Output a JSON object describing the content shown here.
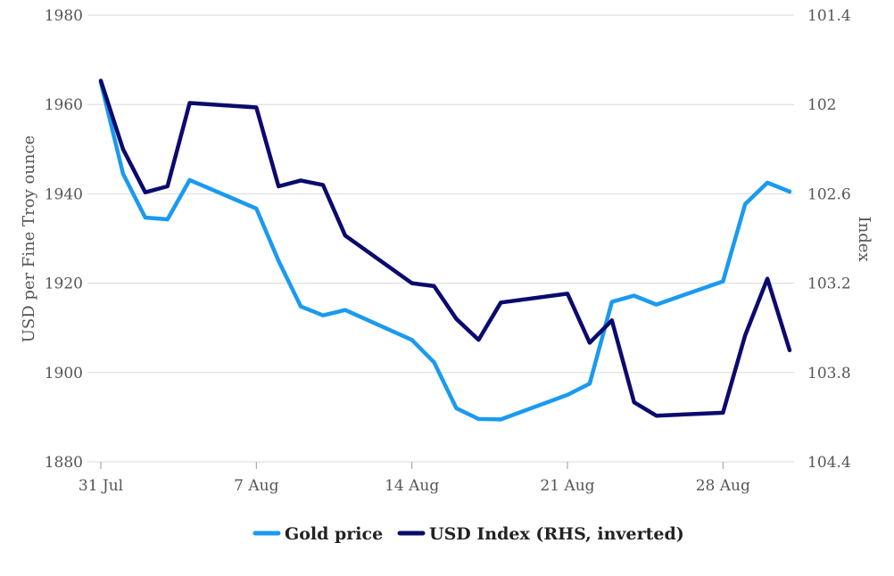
{
  "chart_data": {
    "type": "line",
    "title": "",
    "x_tick_labels": [
      "31 Jul",
      "7 Aug",
      "14 Aug",
      "21 Aug",
      "28 Aug"
    ],
    "x": [
      "2023-07-31",
      "2023-08-01",
      "2023-08-02",
      "2023-08-03",
      "2023-08-04",
      "2023-08-07",
      "2023-08-08",
      "2023-08-09",
      "2023-08-10",
      "2023-08-11",
      "2023-08-14",
      "2023-08-15",
      "2023-08-16",
      "2023-08-17",
      "2023-08-18",
      "2023-08-21",
      "2023-08-22",
      "2023-08-23",
      "2023-08-24",
      "2023-08-25",
      "2023-08-28",
      "2023-08-29",
      "2023-08-30",
      "2023-08-31"
    ],
    "xlim": [
      "2023-07-31",
      "2023-08-31"
    ],
    "left_axis": {
      "label": "USD per Fine Troy ounce",
      "ylim": [
        1880,
        1980
      ],
      "ticks": [
        "1880",
        "1900",
        "1920",
        "1940",
        "1960",
        "1980"
      ]
    },
    "right_axis": {
      "label": "Index",
      "ylim": [
        101.4,
        104.4
      ],
      "inverted": true,
      "ticks": [
        "101.4",
        "102",
        "102.6",
        "103.2",
        "103.8",
        "104.4"
      ]
    },
    "grid": true,
    "legend_position": "bottom",
    "series": [
      {
        "name": "Gold price",
        "axis": "left",
        "color": "#1a9af0",
        "values": [
          1965,
          1944.5,
          1934.7,
          1934.3,
          1943.1,
          1936.7,
          1925,
          1914.8,
          1912.8,
          1914,
          1907.3,
          1902.3,
          1892,
          1889.6,
          1889.5,
          1895,
          1897.5,
          1915.8,
          1917.2,
          1915.2,
          1920.4,
          1937.7,
          1942.5,
          1940.5
        ]
      },
      {
        "name": "USD Index (RHS, inverted)",
        "axis": "right",
        "color": "#0b0a6e",
        "values": [
          101.84,
          102.3,
          102.59,
          102.55,
          101.99,
          102.02,
          102.55,
          102.51,
          102.54,
          102.88,
          103.2,
          103.22,
          103.44,
          103.58,
          103.33,
          103.27,
          103.6,
          103.45,
          104.0,
          104.09,
          104.07,
          103.55,
          103.17,
          103.65
        ]
      }
    ]
  }
}
